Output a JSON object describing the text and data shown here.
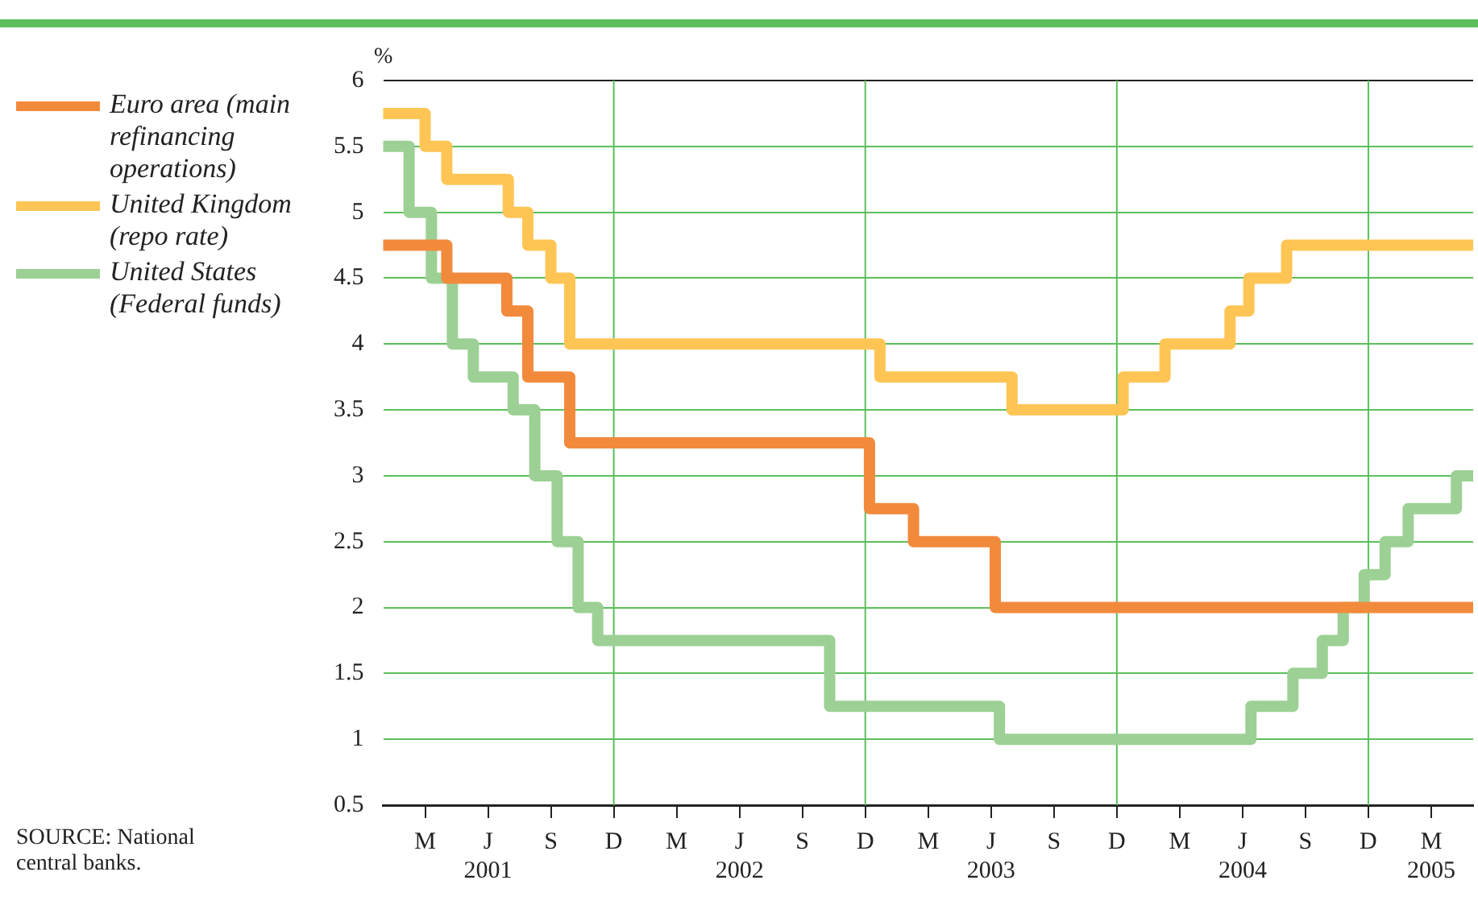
{
  "chart_data": {
    "type": "step",
    "ylabel": "%",
    "legend": "left",
    "grid": "y",
    "xlim": [
      "2001-01",
      "2005-05"
    ],
    "ylim": [
      0.5,
      6
    ],
    "yticks": [
      0.5,
      1,
      1.5,
      2,
      2.5,
      3,
      3.5,
      4,
      4.5,
      5,
      5.5,
      6
    ],
    "xticks": [
      {
        "value": "2001-03",
        "label": "M"
      },
      {
        "value": "2001-06",
        "label": "J\n2001"
      },
      {
        "value": "2001-09",
        "label": "S"
      },
      {
        "value": "2001-12",
        "label": "D"
      },
      {
        "value": "2002-03",
        "label": "M"
      },
      {
        "value": "2002-06",
        "label": "J\n2002"
      },
      {
        "value": "2002-09",
        "label": "S"
      },
      {
        "value": "2002-12",
        "label": "D"
      },
      {
        "value": "2003-03",
        "label": "M"
      },
      {
        "value": "2003-06",
        "label": "J\n2003"
      },
      {
        "value": "2003-09",
        "label": "S"
      },
      {
        "value": "2003-12",
        "label": "D"
      },
      {
        "value": "2004-03",
        "label": "M"
      },
      {
        "value": "2004-06",
        "label": "J\n2004"
      },
      {
        "value": "2004-09",
        "label": "S"
      },
      {
        "value": "2004-12",
        "label": "D"
      },
      {
        "value": "2005-03",
        "label": "M\n2005"
      }
    ],
    "ref_lines": [
      {
        "axis": "x",
        "value": "2001-12",
        "label": null,
        "color": "#5cbf5c"
      },
      {
        "axis": "x",
        "value": "2002-12",
        "label": null,
        "color": "#5cbf5c"
      },
      {
        "axis": "x",
        "value": "2003-12",
        "label": null,
        "color": "#5cbf5c"
      },
      {
        "axis": "x",
        "value": "2004-12",
        "label": null,
        "color": "#5cbf5c"
      }
    ],
    "series": [
      {
        "name": "Euro area (main refinancing operations)",
        "color": "#f28a3c",
        "x": [
          "2001-01",
          "2001-04-02",
          "2001-06-28",
          "2001-07-28",
          "2001-09-28",
          "2002-12-07",
          "2003-02-10",
          "2003-06-07",
          "2005-05"
        ],
        "values": [
          4.75,
          4.5,
          4.25,
          3.75,
          3.25,
          2.75,
          2.5,
          2,
          2
        ]
      },
      {
        "name": "United Kingdom (repo rate)",
        "color": "#ffc554",
        "x": [
          "2001-01",
          "2001-03",
          "2001-04-02",
          "2001-06-30",
          "2001-07-28",
          "2001-09",
          "2001-09-28",
          "2002-12-22",
          "2003-07",
          "2003-12-10",
          "2004-02-10",
          "2004-05-13",
          "2004-06-10",
          "2004-08-04",
          "2005-05"
        ],
        "values": [
          5.75,
          5.5,
          5.25,
          5,
          4.75,
          4.5,
          4,
          3.75,
          3.5,
          3.75,
          4,
          4.25,
          4.5,
          4.75,
          4.75
        ]
      },
      {
        "name": "United States (Federal funds)",
        "color": "#9dd095",
        "x": [
          "2001-01",
          "2001-02-08",
          "2001-03-10",
          "2001-04-10",
          "2001-05-10",
          "2001-07-07",
          "2001-08-08",
          "2001-09-10",
          "2001-10-10",
          "2001-11-08",
          "2002-10-10",
          "2003-06-13",
          "2004-06-13",
          "2004-08-13",
          "2004-09-25",
          "2004-10-25",
          "2004-11-25",
          "2004-12-25",
          "2005-01-28",
          "2005-04-07",
          "2005-05"
        ],
        "values": [
          5.5,
          5,
          4.5,
          4,
          3.75,
          3.5,
          3,
          2.5,
          2,
          1.75,
          1.25,
          1,
          1.25,
          1.5,
          1.75,
          2,
          2.25,
          2.5,
          2.75,
          3,
          3
        ]
      }
    ],
    "annotations": [
      "SOURCE: National central banks."
    ]
  }
}
